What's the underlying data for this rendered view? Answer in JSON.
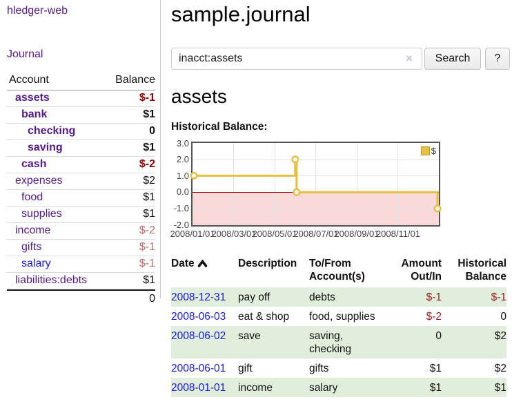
{
  "sidebar": {
    "app_title": "hledger-web",
    "nav": {
      "journal_label": "Journal"
    },
    "table_headers": {
      "account": "Account",
      "balance": "Balance"
    },
    "accounts": [
      {
        "name": "assets",
        "balance": "$-1"
      },
      {
        "name": "bank",
        "balance": "$1"
      },
      {
        "name": "checking",
        "balance": "0"
      },
      {
        "name": "saving",
        "balance": "$1"
      },
      {
        "name": "cash",
        "balance": "$-2"
      },
      {
        "name": "expenses",
        "balance": "$2"
      },
      {
        "name": "food",
        "balance": "$1"
      },
      {
        "name": "supplies",
        "balance": "$1"
      },
      {
        "name": "income",
        "balance": "$-2"
      },
      {
        "name": "gifts",
        "balance": "$-1"
      },
      {
        "name": "salary",
        "balance": "$-1"
      },
      {
        "name": "liabilities:debts",
        "balance": "$1"
      }
    ],
    "total": "0"
  },
  "header": {
    "title": "sample.journal"
  },
  "search": {
    "value": "inacct:assets",
    "clear_icon": "×",
    "button_label": "Search",
    "help_label": "?"
  },
  "account_page": {
    "title": "assets",
    "chart_heading": "Historical Balance:"
  },
  "chart_data": {
    "type": "line",
    "title": "Historical Balance",
    "ylim": [
      -2,
      3
    ],
    "ytick_labels": [
      "3.0",
      "2.0",
      "1.0",
      "0.0",
      "-1.0",
      "-2.0"
    ],
    "xtick_labels": [
      "2008/01/01",
      "2008/03/01",
      "2008/05/01",
      "2008/07/01",
      "2008/09/01",
      "2008/11/01"
    ],
    "grid": true,
    "legend_position": "top-right",
    "zero_line_color": "#a40000",
    "negative_fill": "#f9d9d9",
    "series": [
      {
        "name": "$",
        "color": "#e8bf45",
        "points": [
          {
            "date": "2008-01-01",
            "value": 1
          },
          {
            "date": "2008-06-01",
            "value": 2
          },
          {
            "date": "2008-06-02",
            "value": 2
          },
          {
            "date": "2008-06-03",
            "value": 0
          },
          {
            "date": "2008-12-31",
            "value": -1
          }
        ],
        "path": [
          [
            0,
            1
          ],
          [
            0.416,
            1
          ],
          [
            0.416,
            2
          ],
          [
            0.4215,
            2
          ],
          [
            0.4215,
            0
          ],
          [
            1,
            0
          ],
          [
            1,
            -1
          ]
        ],
        "markers": [
          [
            0,
            1
          ],
          [
            0.416,
            2
          ],
          [
            0.4215,
            0
          ],
          [
            1,
            -1
          ]
        ]
      }
    ]
  },
  "transactions": {
    "headers": {
      "date": "Date",
      "description": "Description",
      "accounts": "To/From Account(s)",
      "amount": "Amount Out/In",
      "balance": "Historical Balance"
    },
    "rows": [
      {
        "date": "2008-12-31",
        "description": "pay off",
        "accounts": "debts",
        "amount": "$-1",
        "balance": "$-1"
      },
      {
        "date": "2008-06-03",
        "description": "eat & shop",
        "accounts": "food, supplies",
        "amount": "$-2",
        "balance": "0"
      },
      {
        "date": "2008-06-02",
        "description": "save",
        "accounts": "saving, checking",
        "amount": "0",
        "balance": "$2"
      },
      {
        "date": "2008-06-01",
        "description": "gift",
        "accounts": "gifts",
        "amount": "$1",
        "balance": "$2"
      },
      {
        "date": "2008-01-01",
        "description": "income",
        "accounts": "salary",
        "amount": "$1",
        "balance": "$1"
      }
    ]
  }
}
